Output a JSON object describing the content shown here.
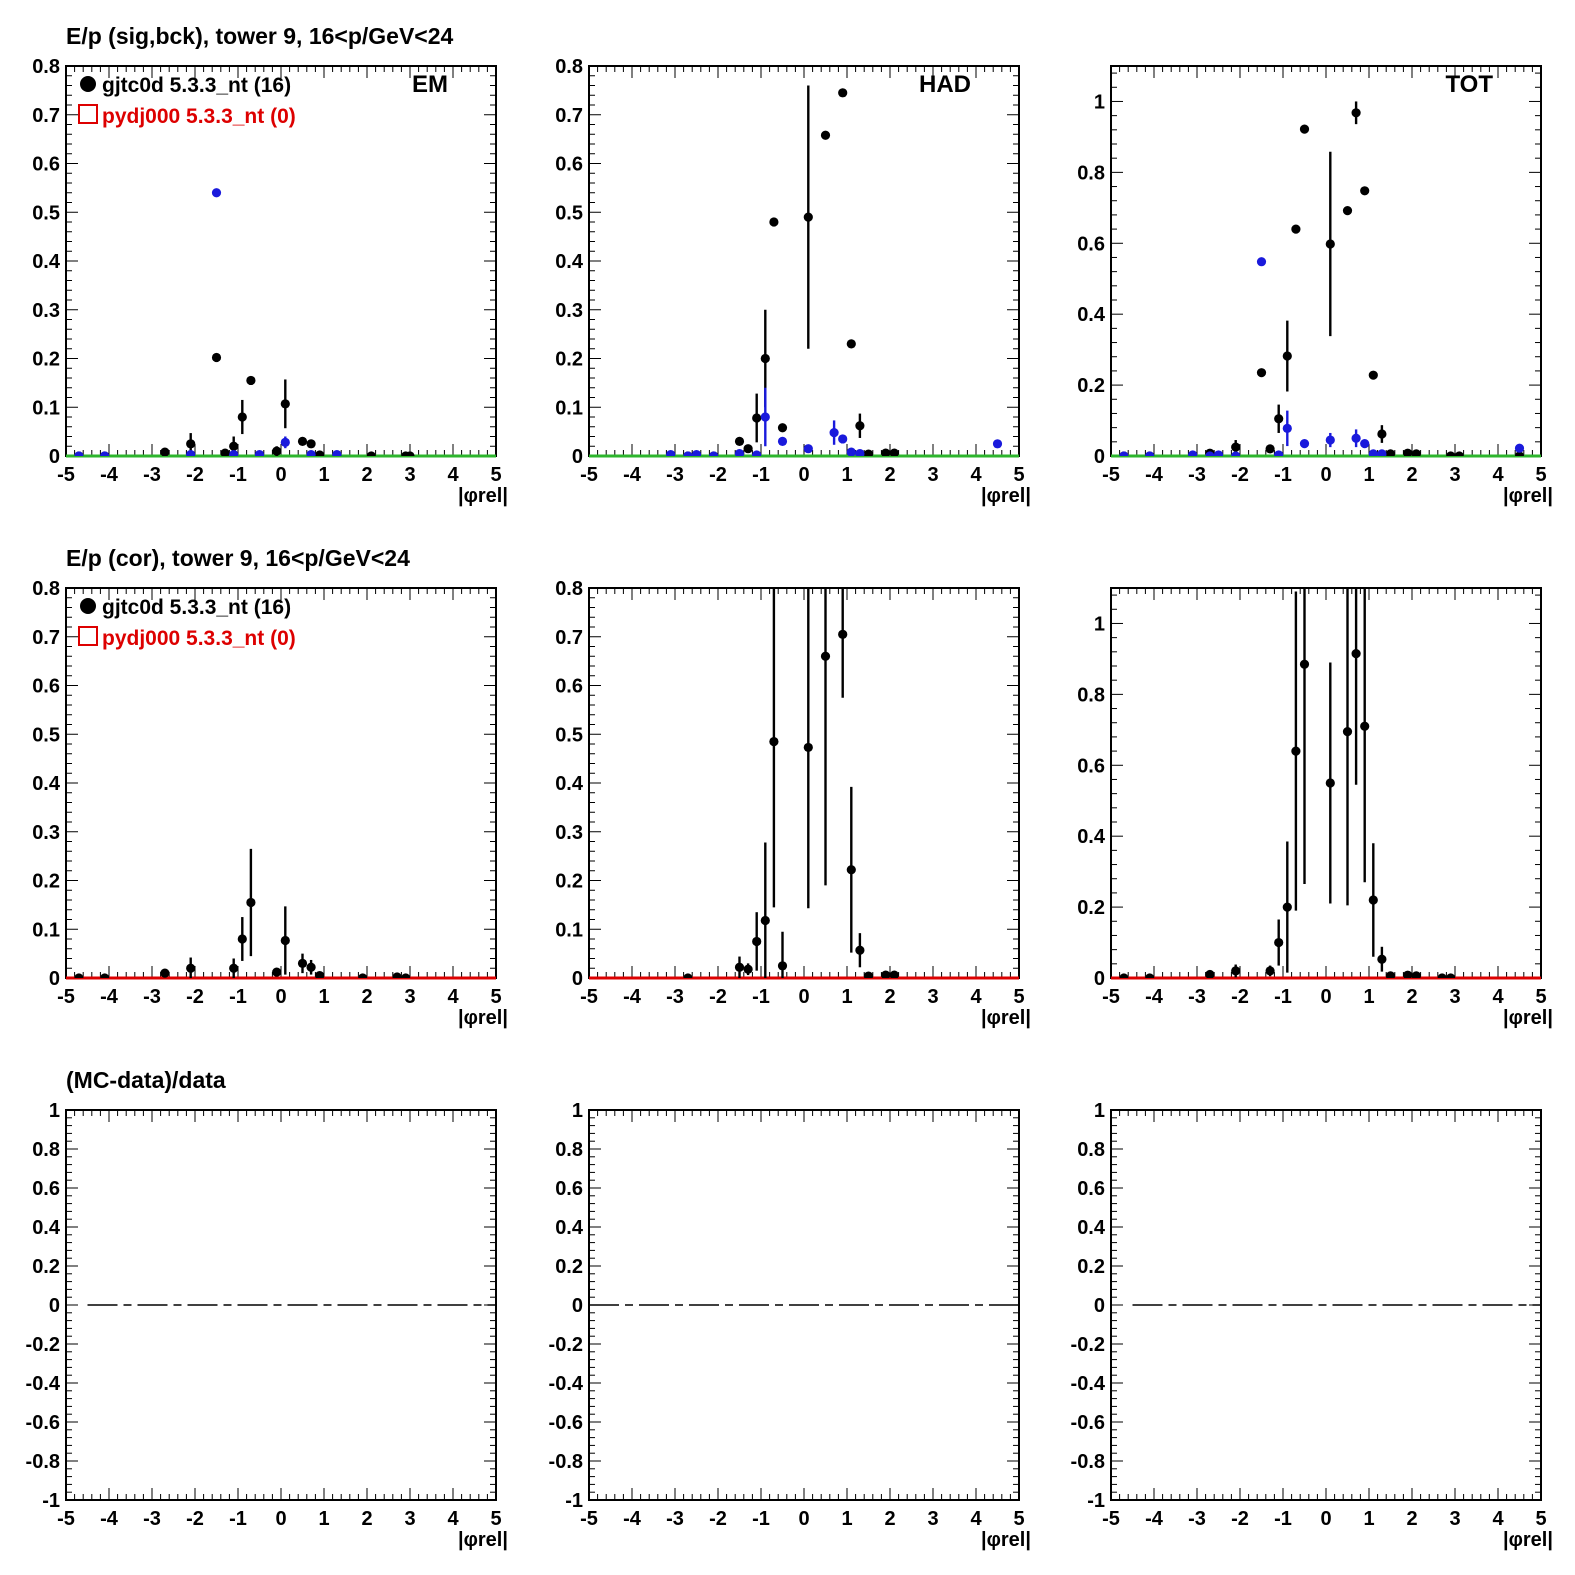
{
  "figure": {
    "row_titles": [
      "E/p (sig,bck), tower 9, 16<p/GeV<24",
      "E/p (cor), tower 9, 16<p/GeV<24",
      "(MC-data)/data"
    ],
    "legend": [
      {
        "label": "gjtc0d 5.3.3_nt (16)",
        "color": "#000000",
        "marker": "filled-circle"
      },
      {
        "label": "pydj000 5.3.3_nt (0)",
        "color": "#dd0000",
        "marker": "open-square"
      }
    ],
    "panel_labels": [
      "EM",
      "HAD",
      "TOT"
    ],
    "xlabel": "|φrel|",
    "colors": {
      "data": "#000000",
      "background": "#1a1adc",
      "mc": "#dd0000",
      "sig_baseline": "#2db52d"
    }
  },
  "chart_data": [
    {
      "type": "scatter",
      "row": 0,
      "col": 0,
      "label": "EM",
      "xlim": [
        -5,
        5
      ],
      "ylim": [
        0,
        0.8
      ],
      "yticks": [
        0,
        0.1,
        0.2,
        0.3,
        0.4,
        0.5,
        0.6,
        0.7,
        0.8
      ],
      "baseline_color": "#2db52d",
      "series": [
        {
          "role": "data",
          "points": [
            [
              -4.7,
              0,
              0
            ],
            [
              -4.1,
              0,
              0
            ],
            [
              -2.7,
              0.008,
              0.006
            ],
            [
              -2.1,
              0.025,
              0.022
            ],
            [
              -1.3,
              0.006,
              0.006
            ],
            [
              -1.1,
              0.02,
              0.02
            ],
            [
              -0.9,
              0.08,
              0.035
            ],
            [
              -0.7,
              0.155,
              0
            ],
            [
              -1.5,
              0.202,
              0
            ],
            [
              -0.1,
              0.01,
              0.01
            ],
            [
              0.1,
              0.107,
              0.05
            ],
            [
              0.5,
              0.03,
              0
            ],
            [
              0.7,
              0.025,
              0
            ],
            [
              0.9,
              0.002,
              0
            ],
            [
              1.3,
              0.002,
              0
            ],
            [
              2.1,
              0,
              0
            ],
            [
              2.9,
              0,
              0
            ],
            [
              3.0,
              0,
              0
            ]
          ]
        },
        {
          "role": "background",
          "points": [
            [
              -4.7,
              0,
              0
            ],
            [
              -4.1,
              0,
              0
            ],
            [
              -2.1,
              0.003,
              0
            ],
            [
              -1.5,
              0.54,
              0
            ],
            [
              -1.1,
              0.003,
              0
            ],
            [
              -0.5,
              0.003,
              0
            ],
            [
              0.1,
              0.028,
              0.012
            ],
            [
              0.7,
              0.003,
              0
            ],
            [
              1.3,
              0.003,
              0
            ]
          ]
        }
      ]
    },
    {
      "type": "scatter",
      "row": 0,
      "col": 1,
      "label": "HAD",
      "xlim": [
        -5,
        5
      ],
      "ylim": [
        0,
        0.8
      ],
      "yticks": [
        0,
        0.1,
        0.2,
        0.3,
        0.4,
        0.5,
        0.6,
        0.7,
        0.8
      ],
      "baseline_color": "#2db52d",
      "series": [
        {
          "role": "data",
          "points": [
            [
              -2.7,
              0,
              0
            ],
            [
              -2.1,
              0,
              0
            ],
            [
              -1.5,
              0.03,
              0
            ],
            [
              -1.3,
              0.015,
              0
            ],
            [
              -1.1,
              0.078,
              0.05
            ],
            [
              -0.9,
              0.2,
              0.1
            ],
            [
              -0.7,
              0.48,
              0
            ],
            [
              -0.5,
              0.058,
              0
            ],
            [
              0.1,
              0.49,
              0.27
            ],
            [
              0.5,
              0.658,
              0
            ],
            [
              0.9,
              0.745,
              0
            ],
            [
              1.1,
              0.23,
              0
            ],
            [
              1.3,
              0.062,
              0.025
            ],
            [
              1.5,
              0.004,
              0
            ],
            [
              1.9,
              0.006,
              0
            ],
            [
              2.1,
              0.006,
              0
            ]
          ]
        },
        {
          "role": "background",
          "points": [
            [
              -3.1,
              0.003,
              0
            ],
            [
              -2.7,
              0,
              0
            ],
            [
              -2.5,
              0.003,
              0
            ],
            [
              -2.1,
              0,
              0
            ],
            [
              -1.5,
              0.005,
              0
            ],
            [
              -1.1,
              0.002,
              0
            ],
            [
              -0.9,
              0.08,
              0.06
            ],
            [
              -0.5,
              0.03,
              0
            ],
            [
              0.1,
              0.015,
              0
            ],
            [
              0.7,
              0.048,
              0.025
            ],
            [
              0.9,
              0.035,
              0
            ],
            [
              1.1,
              0.008,
              0
            ],
            [
              1.3,
              0.005,
              0
            ],
            [
              4.5,
              0.025,
              0
            ]
          ]
        }
      ]
    },
    {
      "type": "scatter",
      "row": 0,
      "col": 2,
      "label": "TOT",
      "xlim": [
        -5,
        5
      ],
      "ylim": [
        0,
        1.1
      ],
      "yticks": [
        0,
        0.2,
        0.4,
        0.6,
        0.8,
        1
      ],
      "baseline_color": "#2db52d",
      "series": [
        {
          "role": "data",
          "points": [
            [
              -4.7,
              0,
              0
            ],
            [
              -4.1,
              0,
              0
            ],
            [
              -2.7,
              0.008,
              0.006
            ],
            [
              -2.1,
              0.025,
              0.02
            ],
            [
              -1.5,
              0.235,
              0
            ],
            [
              -1.3,
              0.02,
              0
            ],
            [
              -1.1,
              0.105,
              0.04
            ],
            [
              -0.9,
              0.282,
              0.1
            ],
            [
              -0.7,
              0.64,
              0
            ],
            [
              -0.5,
              0.922,
              0
            ],
            [
              0.1,
              0.598,
              0.26
            ],
            [
              0.5,
              0.692,
              0
            ],
            [
              0.7,
              0.968,
              0.032
            ],
            [
              0.9,
              0.748,
              0
            ],
            [
              1.1,
              0.228,
              0
            ],
            [
              1.3,
              0.062,
              0.025
            ],
            [
              1.5,
              0.006,
              0
            ],
            [
              1.9,
              0.008,
              0
            ],
            [
              2.1,
              0.006,
              0
            ],
            [
              2.9,
              0,
              0
            ],
            [
              3.1,
              0,
              0
            ],
            [
              4.5,
              0,
              0
            ]
          ]
        },
        {
          "role": "background",
          "points": [
            [
              -4.7,
              0,
              0
            ],
            [
              -4.1,
              0,
              0
            ],
            [
              -3.1,
              0.003,
              0
            ],
            [
              -2.7,
              0,
              0
            ],
            [
              -2.5,
              0.003,
              0
            ],
            [
              -2.1,
              0,
              0
            ],
            [
              -1.5,
              0.548,
              0
            ],
            [
              -1.1,
              0.003,
              0
            ],
            [
              -0.9,
              0.078,
              0.05
            ],
            [
              -0.5,
              0.035,
              0
            ],
            [
              0.1,
              0.045,
              0.02
            ],
            [
              0.7,
              0.05,
              0.025
            ],
            [
              0.9,
              0.035,
              0
            ],
            [
              1.1,
              0.006,
              0
            ],
            [
              1.3,
              0.006,
              0
            ],
            [
              4.5,
              0.022,
              0
            ]
          ]
        }
      ]
    },
    {
      "type": "scatter",
      "row": 1,
      "col": 0,
      "xlim": [
        -5,
        5
      ],
      "ylim": [
        0,
        0.8
      ],
      "yticks": [
        0,
        0.1,
        0.2,
        0.3,
        0.4,
        0.5,
        0.6,
        0.7,
        0.8
      ],
      "baseline_color": "#dd0000",
      "series": [
        {
          "role": "data",
          "points": [
            [
              -4.7,
              0,
              0
            ],
            [
              -4.1,
              0,
              0
            ],
            [
              -2.7,
              0.01,
              0.008
            ],
            [
              -2.1,
              0.02,
              0.022
            ],
            [
              -1.1,
              0.02,
              0.02
            ],
            [
              -0.9,
              0.08,
              0.045
            ],
            [
              -0.7,
              0.155,
              0.11
            ],
            [
              -0.1,
              0.012,
              0.008
            ],
            [
              0.1,
              0.077,
              0.07
            ],
            [
              0.5,
              0.03,
              0.02
            ],
            [
              0.7,
              0.022,
              0.015
            ],
            [
              0.9,
              0.005,
              0
            ],
            [
              1.9,
              0,
              0
            ],
            [
              2.7,
              0.002,
              0
            ],
            [
              2.9,
              0,
              0
            ]
          ]
        }
      ]
    },
    {
      "type": "scatter",
      "row": 1,
      "col": 1,
      "xlim": [
        -5,
        5
      ],
      "ylim": [
        0,
        0.8
      ],
      "yticks": [
        0,
        0.1,
        0.2,
        0.3,
        0.4,
        0.5,
        0.6,
        0.7,
        0.8
      ],
      "baseline_color": "#dd0000",
      "series": [
        {
          "role": "data",
          "points": [
            [
              -2.7,
              0,
              0
            ],
            [
              -1.5,
              0.022,
              0.022
            ],
            [
              -1.3,
              0.018,
              0.012
            ],
            [
              -1.1,
              0.075,
              0.06
            ],
            [
              -0.9,
              0.118,
              0.16
            ],
            [
              -0.7,
              0.485,
              0.34
            ],
            [
              -0.5,
              0.025,
              0.07
            ],
            [
              0.1,
              0.473,
              0.33
            ],
            [
              0.5,
              0.66,
              0.47
            ],
            [
              0.9,
              0.705,
              0.13
            ],
            [
              1.1,
              0.222,
              0.17
            ],
            [
              1.3,
              0.057,
              0.035
            ],
            [
              1.5,
              0.004,
              0
            ],
            [
              1.9,
              0.006,
              0
            ],
            [
              2.1,
              0.006,
              0
            ]
          ]
        }
      ]
    },
    {
      "type": "scatter",
      "row": 1,
      "col": 2,
      "xlim": [
        -5,
        5
      ],
      "ylim": [
        0,
        1.1
      ],
      "yticks": [
        0,
        0.2,
        0.4,
        0.6,
        0.8,
        1
      ],
      "baseline_color": "#dd0000",
      "series": [
        {
          "role": "data",
          "points": [
            [
              -4.7,
              0,
              0
            ],
            [
              -4.1,
              0,
              0
            ],
            [
              -2.7,
              0.01,
              0.005
            ],
            [
              -2.1,
              0.02,
              0.018
            ],
            [
              -1.3,
              0.02,
              0.015
            ],
            [
              -1.1,
              0.1,
              0.065
            ],
            [
              -0.9,
              0.2,
              0.185
            ],
            [
              -0.7,
              0.64,
              0.45
            ],
            [
              -0.5,
              0.885,
              0.62
            ],
            [
              0.1,
              0.55,
              0.34
            ],
            [
              0.5,
              0.695,
              0.49
            ],
            [
              0.7,
              0.915,
              0.37
            ],
            [
              0.9,
              0.71,
              0.44
            ],
            [
              1.1,
              0.22,
              0.16
            ],
            [
              1.3,
              0.053,
              0.035
            ],
            [
              1.5,
              0.006,
              0
            ],
            [
              1.9,
              0.008,
              0
            ],
            [
              2.1,
              0.006,
              0
            ],
            [
              2.7,
              0,
              0
            ],
            [
              2.9,
              0,
              0
            ]
          ]
        }
      ]
    },
    {
      "type": "line",
      "row": 2,
      "col": 0,
      "xlim": [
        -5,
        5
      ],
      "ylim": [
        -1,
        1
      ],
      "yticks": [
        -1,
        -0.8,
        -0.6,
        -0.4,
        -0.2,
        0,
        0.2,
        0.4,
        0.6,
        0.8,
        1
      ],
      "series": [
        {
          "role": "ratio",
          "x": [
            -4.5,
            5
          ],
          "y": [
            0,
            0
          ]
        }
      ]
    },
    {
      "type": "line",
      "row": 2,
      "col": 1,
      "xlim": [
        -5,
        5
      ],
      "ylim": [
        -1,
        1
      ],
      "yticks": [
        -1,
        -0.8,
        -0.6,
        -0.4,
        -0.2,
        0,
        0.2,
        0.4,
        0.6,
        0.8,
        1
      ],
      "series": [
        {
          "role": "ratio",
          "x": [
            -5,
            5
          ],
          "y": [
            0,
            0
          ]
        }
      ]
    },
    {
      "type": "line",
      "row": 2,
      "col": 2,
      "xlim": [
        -5,
        5
      ],
      "ylim": [
        -1,
        1
      ],
      "yticks": [
        -1,
        -0.8,
        -0.6,
        -0.4,
        -0.2,
        0,
        0.2,
        0.4,
        0.6,
        0.8,
        1
      ],
      "series": [
        {
          "role": "ratio",
          "x": [
            -4.5,
            5
          ],
          "y": [
            0,
            0
          ]
        }
      ]
    }
  ]
}
